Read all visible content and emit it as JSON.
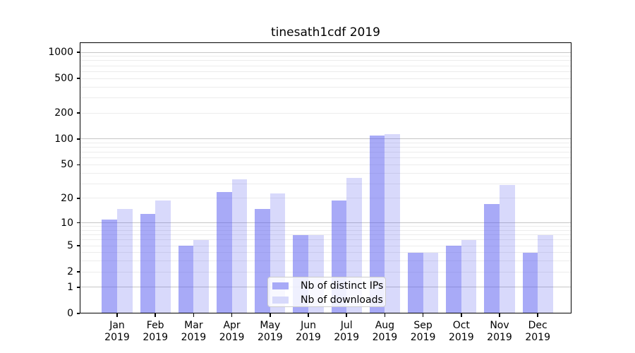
{
  "figure": {
    "title": "tinesath1cdf 2019"
  },
  "chart_data": {
    "type": "bar",
    "title": "tinesath1cdf 2019",
    "categories": [
      "Jan",
      "Feb",
      "Mar",
      "Apr",
      "May",
      "Jun",
      "Jul",
      "Aug",
      "Sep",
      "Oct",
      "Nov",
      "Dec"
    ],
    "year_label": "2019",
    "series": [
      {
        "name": "Nb of distinct IPs",
        "values": [
          11,
          13,
          5,
          24,
          15,
          7,
          19,
          110,
          4,
          5,
          17,
          4
        ],
        "fill": "rgba(90, 95, 240, 0.53)",
        "legend_color": "#a8aaf7"
      },
      {
        "name": "Nb of downloads",
        "values": [
          15,
          19,
          6,
          34,
          23,
          7,
          35,
          113,
          4,
          6,
          29,
          7
        ],
        "fill": "rgba(90, 95, 240, 0.24)",
        "legend_color": "#d7d9fb"
      }
    ],
    "yscale": "log1p",
    "yticks": [
      0,
      1,
      2,
      5,
      10,
      20,
      50,
      100,
      200,
      500,
      1000
    ],
    "ylim": [
      0,
      1300
    ],
    "xlabel": "",
    "ylabel": "",
    "grid": {
      "major_color": "#c6c6c6",
      "minor_color": "#ececec",
      "orientation": "horizontal"
    },
    "legend": {
      "position": "lower center"
    }
  }
}
